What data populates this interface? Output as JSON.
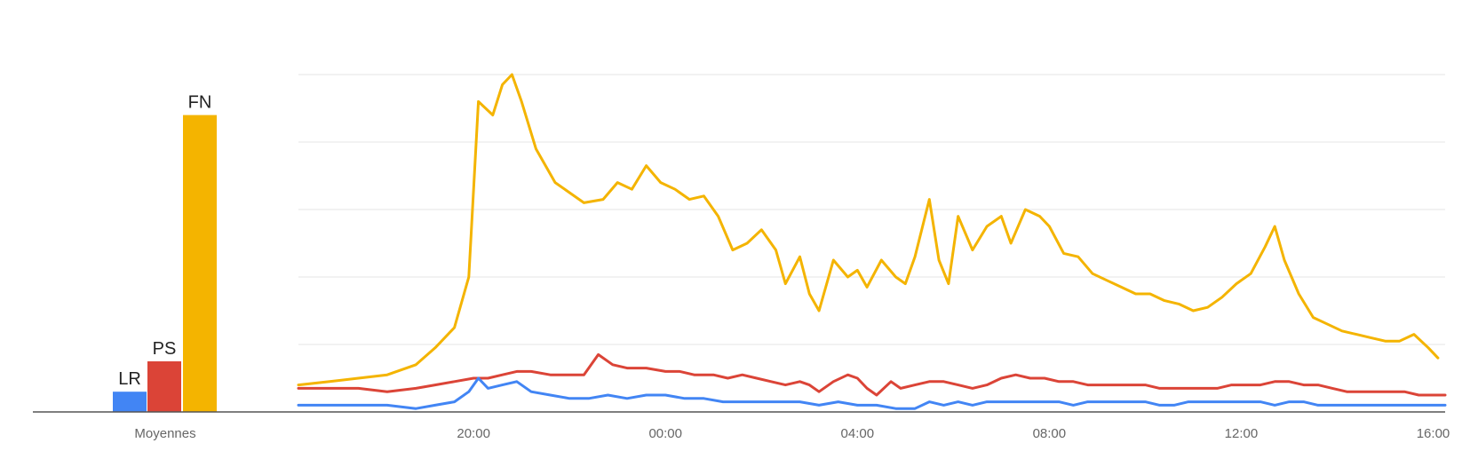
{
  "chart_data": [
    {
      "type": "bar",
      "categories": [
        "LR",
        "PS",
        "FN"
      ],
      "values": [
        6,
        15,
        88
      ],
      "xlabel": "Moyennes",
      "colors": [
        "#4285f4",
        "#db4437",
        "#f4b400"
      ]
    },
    {
      "type": "line",
      "x_ticks": [
        "20:00",
        "00:00",
        "04:00",
        "08:00",
        "12:00",
        "16:00"
      ],
      "x_tick_hours": [
        20,
        24,
        28,
        32,
        36,
        40
      ],
      "x_range_hours": [
        16.35,
        40.25
      ],
      "ylim": [
        0,
        100
      ],
      "grid": true,
      "series": [
        {
          "name": "FN",
          "color": "#f4b400",
          "points": [
            [
              16.35,
              8
            ],
            [
              17.0,
              9
            ],
            [
              17.6,
              10
            ],
            [
              18.2,
              11
            ],
            [
              18.8,
              14
            ],
            [
              19.2,
              19
            ],
            [
              19.6,
              25
            ],
            [
              19.9,
              40
            ],
            [
              20.1,
              92
            ],
            [
              20.4,
              88
            ],
            [
              20.6,
              97
            ],
            [
              20.8,
              100
            ],
            [
              21.0,
              92
            ],
            [
              21.3,
              78
            ],
            [
              21.7,
              68
            ],
            [
              22.0,
              65
            ],
            [
              22.3,
              62
            ],
            [
              22.7,
              63
            ],
            [
              23.0,
              68
            ],
            [
              23.3,
              66
            ],
            [
              23.6,
              73
            ],
            [
              23.9,
              68
            ],
            [
              24.2,
              66
            ],
            [
              24.5,
              63
            ],
            [
              24.8,
              64
            ],
            [
              25.1,
              58
            ],
            [
              25.4,
              48
            ],
            [
              25.7,
              50
            ],
            [
              26.0,
              54
            ],
            [
              26.3,
              48
            ],
            [
              26.5,
              38
            ],
            [
              26.8,
              46
            ],
            [
              27.0,
              35
            ],
            [
              27.2,
              30
            ],
            [
              27.5,
              45
            ],
            [
              27.8,
              40
            ],
            [
              28.0,
              42
            ],
            [
              28.2,
              37
            ],
            [
              28.5,
              45
            ],
            [
              28.8,
              40
            ],
            [
              29.0,
              38
            ],
            [
              29.2,
              46
            ],
            [
              29.5,
              63
            ],
            [
              29.7,
              45
            ],
            [
              29.9,
              38
            ],
            [
              30.1,
              58
            ],
            [
              30.4,
              48
            ],
            [
              30.7,
              55
            ],
            [
              31.0,
              58
            ],
            [
              31.2,
              50
            ],
            [
              31.5,
              60
            ],
            [
              31.8,
              58
            ],
            [
              32.0,
              55
            ],
            [
              32.3,
              47
            ],
            [
              32.6,
              46
            ],
            [
              32.9,
              41
            ],
            [
              33.2,
              39
            ],
            [
              33.5,
              37
            ],
            [
              33.8,
              35
            ],
            [
              34.1,
              35
            ],
            [
              34.4,
              33
            ],
            [
              34.7,
              32
            ],
            [
              35.0,
              30
            ],
            [
              35.3,
              31
            ],
            [
              35.6,
              34
            ],
            [
              35.9,
              38
            ],
            [
              36.2,
              41
            ],
            [
              36.5,
              49
            ],
            [
              36.7,
              55
            ],
            [
              36.9,
              45
            ],
            [
              37.2,
              35
            ],
            [
              37.5,
              28
            ],
            [
              37.8,
              26
            ],
            [
              38.1,
              24
            ],
            [
              38.4,
              23
            ],
            [
              38.7,
              22
            ],
            [
              39.0,
              21
            ],
            [
              39.3,
              21
            ],
            [
              39.6,
              23
            ],
            [
              39.9,
              19
            ],
            [
              40.1,
              16
            ]
          ]
        },
        {
          "name": "PS",
          "color": "#db4437",
          "points": [
            [
              16.35,
              7
            ],
            [
              17.0,
              7
            ],
            [
              17.6,
              7
            ],
            [
              18.2,
              6
            ],
            [
              18.8,
              7
            ],
            [
              19.2,
              8
            ],
            [
              19.6,
              9
            ],
            [
              20.0,
              10
            ],
            [
              20.3,
              10
            ],
            [
              20.6,
              11
            ],
            [
              20.9,
              12
            ],
            [
              21.2,
              12
            ],
            [
              21.6,
              11
            ],
            [
              22.0,
              11
            ],
            [
              22.3,
              11
            ],
            [
              22.6,
              17
            ],
            [
              22.9,
              14
            ],
            [
              23.2,
              13
            ],
            [
              23.6,
              13
            ],
            [
              24.0,
              12
            ],
            [
              24.3,
              12
            ],
            [
              24.6,
              11
            ],
            [
              25.0,
              11
            ],
            [
              25.3,
              10
            ],
            [
              25.6,
              11
            ],
            [
              25.9,
              10
            ],
            [
              26.2,
              9
            ],
            [
              26.5,
              8
            ],
            [
              26.8,
              9
            ],
            [
              27.0,
              8
            ],
            [
              27.2,
              6
            ],
            [
              27.5,
              9
            ],
            [
              27.8,
              11
            ],
            [
              28.0,
              10
            ],
            [
              28.2,
              7
            ],
            [
              28.4,
              5
            ],
            [
              28.7,
              9
            ],
            [
              28.9,
              7
            ],
            [
              29.2,
              8
            ],
            [
              29.5,
              9
            ],
            [
              29.8,
              9
            ],
            [
              30.1,
              8
            ],
            [
              30.4,
              7
            ],
            [
              30.7,
              8
            ],
            [
              31.0,
              10
            ],
            [
              31.3,
              11
            ],
            [
              31.6,
              10
            ],
            [
              31.9,
              10
            ],
            [
              32.2,
              9
            ],
            [
              32.5,
              9
            ],
            [
              32.8,
              8
            ],
            [
              33.1,
              8
            ],
            [
              33.4,
              8
            ],
            [
              33.7,
              8
            ],
            [
              34.0,
              8
            ],
            [
              34.3,
              7
            ],
            [
              34.6,
              7
            ],
            [
              34.9,
              7
            ],
            [
              35.2,
              7
            ],
            [
              35.5,
              7
            ],
            [
              35.8,
              8
            ],
            [
              36.1,
              8
            ],
            [
              36.4,
              8
            ],
            [
              36.7,
              9
            ],
            [
              37.0,
              9
            ],
            [
              37.3,
              8
            ],
            [
              37.6,
              8
            ],
            [
              37.9,
              7
            ],
            [
              38.2,
              6
            ],
            [
              38.5,
              6
            ],
            [
              38.8,
              6
            ],
            [
              39.1,
              6
            ],
            [
              39.4,
              6
            ],
            [
              39.7,
              5
            ],
            [
              40.0,
              5
            ],
            [
              40.25,
              5
            ]
          ]
        },
        {
          "name": "LR",
          "color": "#4285f4",
          "points": [
            [
              16.35,
              2
            ],
            [
              17.0,
              2
            ],
            [
              17.6,
              2
            ],
            [
              18.2,
              2
            ],
            [
              18.8,
              1
            ],
            [
              19.2,
              2
            ],
            [
              19.6,
              3
            ],
            [
              19.9,
              6
            ],
            [
              20.1,
              10
            ],
            [
              20.3,
              7
            ],
            [
              20.6,
              8
            ],
            [
              20.9,
              9
            ],
            [
              21.2,
              6
            ],
            [
              21.6,
              5
            ],
            [
              22.0,
              4
            ],
            [
              22.4,
              4
            ],
            [
              22.8,
              5
            ],
            [
              23.2,
              4
            ],
            [
              23.6,
              5
            ],
            [
              24.0,
              5
            ],
            [
              24.4,
              4
            ],
            [
              24.8,
              4
            ],
            [
              25.2,
              3
            ],
            [
              25.6,
              3
            ],
            [
              26.0,
              3
            ],
            [
              26.4,
              3
            ],
            [
              26.8,
              3
            ],
            [
              27.2,
              2
            ],
            [
              27.6,
              3
            ],
            [
              28.0,
              2
            ],
            [
              28.4,
              2
            ],
            [
              28.8,
              1
            ],
            [
              29.2,
              1
            ],
            [
              29.5,
              3
            ],
            [
              29.8,
              2
            ],
            [
              30.1,
              3
            ],
            [
              30.4,
              2
            ],
            [
              30.7,
              3
            ],
            [
              31.0,
              3
            ],
            [
              31.3,
              3
            ],
            [
              31.6,
              3
            ],
            [
              31.9,
              3
            ],
            [
              32.2,
              3
            ],
            [
              32.5,
              2
            ],
            [
              32.8,
              3
            ],
            [
              33.1,
              3
            ],
            [
              33.4,
              3
            ],
            [
              33.7,
              3
            ],
            [
              34.0,
              3
            ],
            [
              34.3,
              2
            ],
            [
              34.6,
              2
            ],
            [
              34.9,
              3
            ],
            [
              35.2,
              3
            ],
            [
              35.5,
              3
            ],
            [
              35.8,
              3
            ],
            [
              36.1,
              3
            ],
            [
              36.4,
              3
            ],
            [
              36.7,
              2
            ],
            [
              37.0,
              3
            ],
            [
              37.3,
              3
            ],
            [
              37.6,
              2
            ],
            [
              37.9,
              2
            ],
            [
              38.2,
              2
            ],
            [
              38.5,
              2
            ],
            [
              38.8,
              2
            ],
            [
              39.1,
              2
            ],
            [
              39.4,
              2
            ],
            [
              39.7,
              2
            ],
            [
              40.0,
              2
            ],
            [
              40.25,
              2
            ]
          ]
        }
      ]
    }
  ]
}
